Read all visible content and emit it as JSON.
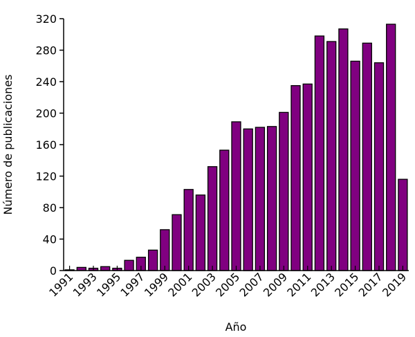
{
  "chart_data": {
    "type": "bar",
    "title": "",
    "xlabel": "Año",
    "ylabel": "Número de publicaciones",
    "ylim": [
      0,
      320
    ],
    "yticks": [
      0,
      40,
      80,
      120,
      160,
      200,
      240,
      280,
      320
    ],
    "xtick_labels": [
      "1991",
      "1993",
      "1995",
      "1997",
      "1999",
      "2001",
      "2003",
      "2005",
      "2007",
      "2009",
      "2011",
      "2013",
      "2015",
      "2017",
      "2019"
    ],
    "grid": false,
    "legend": null,
    "bar_color": "#800080",
    "edge_color": "#000000",
    "categories": [
      "1991",
      "1992",
      "1993",
      "1994",
      "1995",
      "1996",
      "1997",
      "1998",
      "1999",
      "2000",
      "2001",
      "2002",
      "2003",
      "2004",
      "2005",
      "2006",
      "2007",
      "2008",
      "2009",
      "2010",
      "2011",
      "2012",
      "2013",
      "2014",
      "2015",
      "2016",
      "2017",
      "2018",
      "2019"
    ],
    "values": [
      1,
      4,
      3,
      5,
      3,
      13,
      17,
      26,
      52,
      71,
      103,
      96,
      132,
      153,
      189,
      180,
      182,
      183,
      201,
      235,
      237,
      298,
      291,
      307,
      266,
      289,
      264,
      313,
      116
    ]
  }
}
